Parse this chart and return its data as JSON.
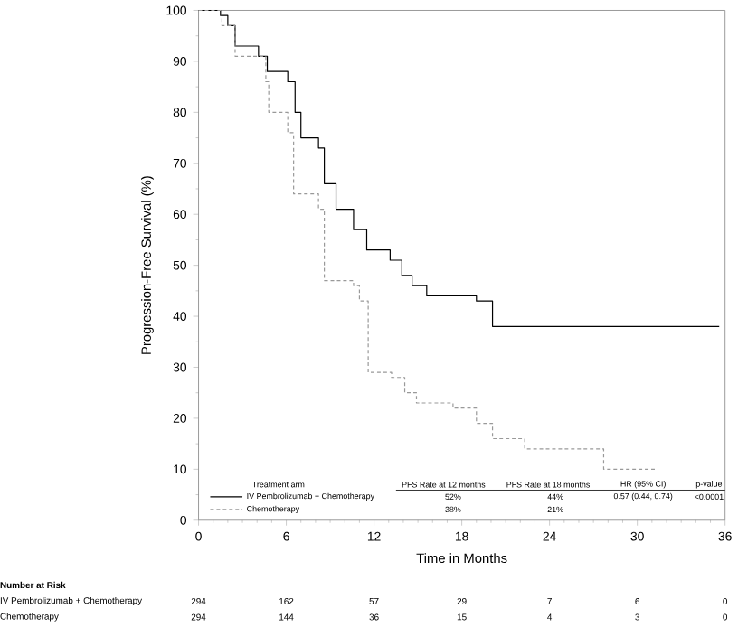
{
  "chart_data": {
    "type": "step",
    "xlabel": "Time in Months",
    "ylabel": "Progression-Free Survival (%)",
    "xlim": [
      0,
      36
    ],
    "ylim": [
      0,
      100
    ],
    "xticks": [
      0,
      6,
      12,
      18,
      24,
      30,
      36
    ],
    "yticks": [
      0,
      10,
      20,
      30,
      40,
      50,
      60,
      70,
      80,
      90,
      100
    ],
    "legend": "bottom left",
    "series": [
      {
        "name": "IV Pembrolizumab + Chemotherapy",
        "color": "#000000",
        "line_style": "solid",
        "x": [
          0,
          1.5,
          2.0,
          2.5,
          4.1,
          4.7,
          6.1,
          6.6,
          7.0,
          8.2,
          8.6,
          9.4,
          10.6,
          11.5,
          13.1,
          13.9,
          14.6,
          15.6,
          19.0,
          20.1,
          35.6
        ],
        "values": [
          100,
          99,
          97,
          93,
          91,
          88,
          86,
          80,
          75,
          73,
          66,
          61,
          57,
          53,
          51,
          48,
          46,
          44,
          43,
          38,
          38
        ]
      },
      {
        "name": "Chemotherapy",
        "color": "#999999",
        "line_style": "dashed",
        "x": [
          0,
          1.6,
          2.5,
          4.6,
          4.8,
          6.1,
          6.5,
          8.2,
          8.6,
          10.6,
          11.0,
          11.6,
          13.2,
          14.1,
          14.9,
          17.4,
          19.0,
          20.1,
          22.3,
          27.7,
          31.4
        ],
        "values": [
          100,
          97,
          91,
          86,
          80,
          76,
          64,
          61,
          47,
          46,
          43,
          29,
          28,
          25,
          23,
          22,
          19,
          16,
          14,
          10,
          10
        ]
      }
    ],
    "annotations": [
      "Treatment arm",
      "PFS Rate at 12 months",
      "PFS Rate at 18 months",
      "HR (95% CI)",
      "p-value",
      "52%",
      "44%",
      "0.57 (0.44, 0.74)",
      "<0.0001",
      "38%",
      "21%",
      "Number at Risk",
      "IV Pembrolizumab + Chemotherapy",
      "294",
      "162",
      "57",
      "29",
      "7",
      "6",
      "0",
      "Chemotherapy",
      "294",
      "144",
      "36",
      "15",
      "4",
      "3",
      "0"
    ]
  }
}
